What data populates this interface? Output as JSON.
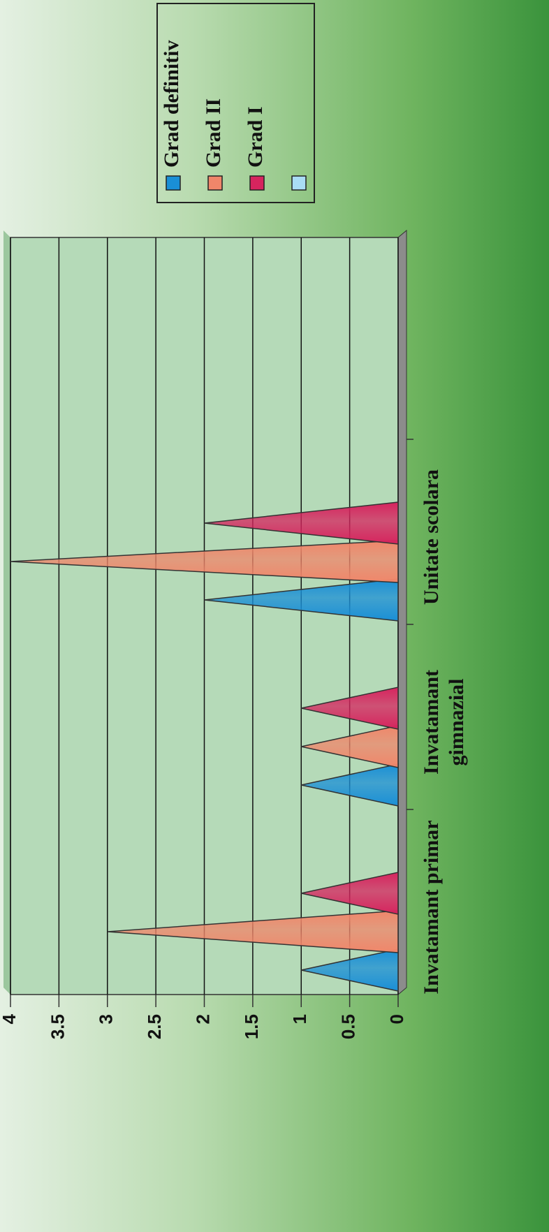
{
  "chart_data": {
    "type": "bar",
    "categories": [
      "Invatamant primar",
      "Invatamant gimnazial",
      "Unitate scolara"
    ],
    "series": [
      {
        "name": "Grad definitiv",
        "color": "#1a8fd6",
        "values": [
          1,
          1,
          2
        ]
      },
      {
        "name": "Grad II",
        "color": "#f0866a",
        "values": [
          3,
          1,
          4
        ]
      },
      {
        "name": "Grad I",
        "color": "#d6245e",
        "values": [
          1,
          1,
          2
        ]
      },
      {
        "name": null,
        "color": "#a9dcf5",
        "values": [
          null,
          null,
          null
        ]
      }
    ],
    "ylim": [
      0,
      4
    ],
    "yticks": [
      0,
      0.5,
      1,
      1.5,
      2,
      2.5,
      3,
      3.5,
      4
    ],
    "grid": true,
    "legend": "right"
  }
}
